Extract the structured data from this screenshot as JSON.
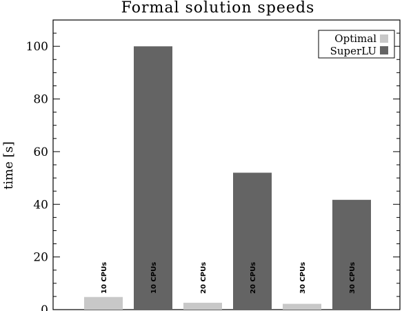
{
  "chart_data": {
    "type": "bar",
    "title": "Formal solution speeds",
    "xlabel": "",
    "ylabel": "time [s]",
    "ylim": [
      0,
      110
    ],
    "yticks": [
      0,
      20,
      40,
      60,
      80,
      100
    ],
    "grid": false,
    "legend_position": "top-right",
    "bars": [
      {
        "series": "Optimal",
        "label": "10 CPUs",
        "value": 4.8
      },
      {
        "series": "SuperLU",
        "label": "10 CPUs",
        "value": 100
      },
      {
        "series": "Optimal",
        "label": "20 CPUs",
        "value": 2.6
      },
      {
        "series": "SuperLU",
        "label": "20 CPUs",
        "value": 52
      },
      {
        "series": "Optimal",
        "label": "30 CPUs",
        "value": 2.2
      },
      {
        "series": "SuperLU",
        "label": "30 CPUs",
        "value": 41.7
      }
    ],
    "series": [
      {
        "name": "Optimal",
        "color": "#c8c8c8"
      },
      {
        "name": "SuperLU",
        "color": "#646464"
      }
    ]
  }
}
